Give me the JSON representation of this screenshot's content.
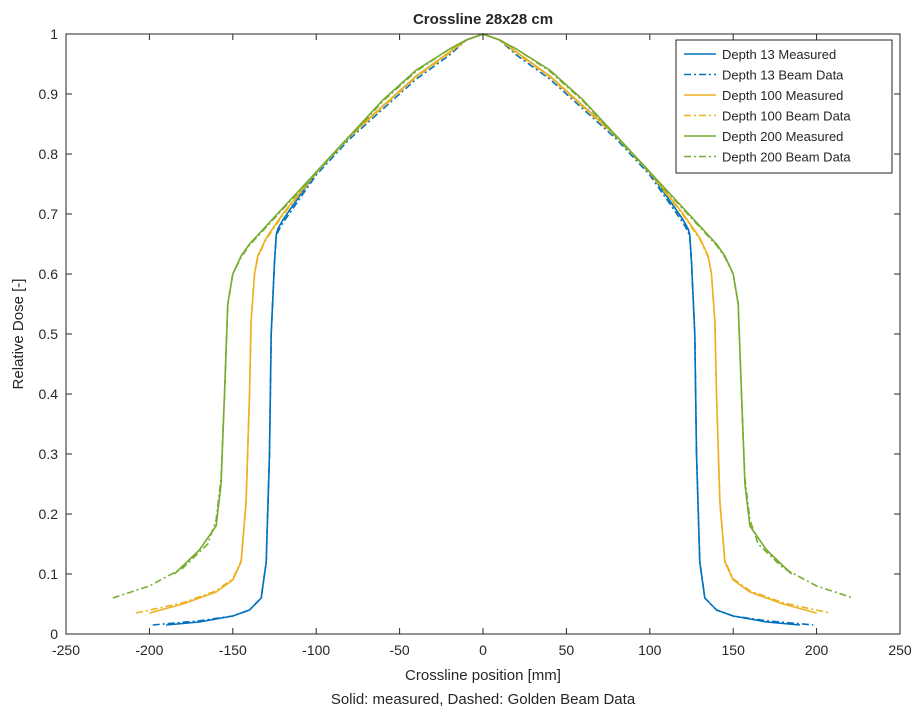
{
  "chart_data": {
    "type": "line",
    "title": "Crossline 28x28 cm",
    "xlabel": "Crossline position [mm]",
    "ylabel": "Relative Dose [-]",
    "caption": "Solid: measured, Dashed: Golden Beam Data",
    "xlim": [
      -250,
      250
    ],
    "ylim": [
      0,
      1
    ],
    "xticks": [
      -250,
      -200,
      -150,
      -100,
      -50,
      0,
      50,
      100,
      150,
      200,
      250
    ],
    "yticks": [
      0,
      0.1,
      0.2,
      0.3,
      0.4,
      0.5,
      0.6,
      0.7,
      0.8,
      0.9,
      1
    ],
    "grid": false,
    "legend": "top-right",
    "colors": {
      "blue": "#0072BD",
      "orange": "#EDB120",
      "green": "#77AC30"
    },
    "series": [
      {
        "name": "Depth 13 Measured",
        "color": "#0072BD",
        "style": "solid",
        "x": [
          -190,
          -170,
          -150,
          -140,
          -133,
          -130,
          -128,
          -127,
          -125,
          -124,
          -123,
          -120,
          -110,
          -100,
          -80,
          -60,
          -40,
          -20,
          -10,
          0,
          10,
          20,
          40,
          60,
          80,
          100,
          110,
          120,
          123,
          124,
          125,
          127,
          128,
          130,
          133,
          140,
          150,
          170,
          190
        ],
        "y": [
          0.015,
          0.02,
          0.03,
          0.04,
          0.06,
          0.12,
          0.3,
          0.5,
          0.62,
          0.665,
          0.675,
          0.69,
          0.73,
          0.77,
          0.83,
          0.88,
          0.93,
          0.97,
          0.99,
          1.0,
          0.99,
          0.97,
          0.93,
          0.88,
          0.83,
          0.77,
          0.73,
          0.69,
          0.675,
          0.665,
          0.62,
          0.5,
          0.3,
          0.12,
          0.06,
          0.04,
          0.03,
          0.02,
          0.015
        ]
      },
      {
        "name": "Depth 13 Beam Data",
        "color": "#0072BD",
        "style": "dashdot",
        "x": [
          -198,
          -170,
          -150,
          -140,
          -133,
          -130,
          -128,
          -127,
          -125,
          -124,
          -123,
          -120,
          -110,
          -100,
          -80,
          -60,
          -40,
          -20,
          -10,
          0,
          10,
          20,
          40,
          60,
          80,
          100,
          110,
          120,
          123,
          124,
          125,
          127,
          128,
          130,
          133,
          140,
          150,
          170,
          198
        ],
        "y": [
          0.015,
          0.022,
          0.03,
          0.04,
          0.06,
          0.12,
          0.3,
          0.5,
          0.62,
          0.66,
          0.67,
          0.685,
          0.725,
          0.765,
          0.825,
          0.875,
          0.925,
          0.965,
          0.99,
          1.0,
          0.99,
          0.965,
          0.925,
          0.875,
          0.825,
          0.765,
          0.725,
          0.685,
          0.67,
          0.66,
          0.62,
          0.5,
          0.3,
          0.12,
          0.06,
          0.04,
          0.03,
          0.022,
          0.015
        ]
      },
      {
        "name": "Depth 100 Measured",
        "color": "#EDB120",
        "style": "solid",
        "x": [
          -200,
          -180,
          -160,
          -150,
          -145,
          -142,
          -140,
          -139,
          -137,
          -135,
          -130,
          -120,
          -100,
          -80,
          -60,
          -40,
          -20,
          -10,
          0,
          10,
          20,
          40,
          60,
          80,
          100,
          120,
          130,
          135,
          137,
          139,
          140,
          142,
          145,
          150,
          160,
          180,
          200
        ],
        "y": [
          0.035,
          0.05,
          0.07,
          0.09,
          0.12,
          0.22,
          0.4,
          0.52,
          0.6,
          0.63,
          0.66,
          0.7,
          0.77,
          0.83,
          0.88,
          0.93,
          0.97,
          0.99,
          1.0,
          0.99,
          0.97,
          0.93,
          0.88,
          0.83,
          0.77,
          0.7,
          0.66,
          0.63,
          0.6,
          0.52,
          0.4,
          0.22,
          0.12,
          0.09,
          0.07,
          0.05,
          0.035
        ]
      },
      {
        "name": "Depth 100 Beam Data",
        "color": "#EDB120",
        "style": "dashdot",
        "x": [
          -208,
          -180,
          -160,
          -150,
          -145,
          -142,
          -140,
          -139,
          -137,
          -135,
          -130,
          -120,
          -100,
          -80,
          -60,
          -40,
          -20,
          -10,
          0,
          10,
          20,
          40,
          60,
          80,
          100,
          120,
          130,
          135,
          137,
          139,
          140,
          142,
          145,
          150,
          160,
          180,
          208
        ],
        "y": [
          0.035,
          0.052,
          0.072,
          0.092,
          0.122,
          0.22,
          0.4,
          0.52,
          0.6,
          0.628,
          0.658,
          0.698,
          0.768,
          0.828,
          0.878,
          0.928,
          0.968,
          0.99,
          1.0,
          0.99,
          0.968,
          0.928,
          0.878,
          0.828,
          0.768,
          0.698,
          0.658,
          0.628,
          0.6,
          0.52,
          0.4,
          0.22,
          0.122,
          0.092,
          0.072,
          0.052,
          0.035
        ]
      },
      {
        "name": "Depth 200 Measured",
        "color": "#77AC30",
        "style": "solid",
        "x": [
          -185,
          -170,
          -160,
          -157,
          -155,
          -153,
          -150,
          -145,
          -140,
          -120,
          -100,
          -80,
          -60,
          -40,
          -20,
          -10,
          0,
          10,
          20,
          40,
          60,
          80,
          100,
          120,
          140,
          145,
          150,
          153,
          155,
          157,
          160,
          170,
          185
        ],
        "y": [
          0.1,
          0.14,
          0.18,
          0.25,
          0.4,
          0.55,
          0.6,
          0.63,
          0.65,
          0.71,
          0.77,
          0.83,
          0.89,
          0.94,
          0.975,
          0.99,
          1.0,
          0.99,
          0.975,
          0.94,
          0.89,
          0.83,
          0.77,
          0.71,
          0.65,
          0.63,
          0.6,
          0.55,
          0.4,
          0.25,
          0.18,
          0.14,
          0.1
        ]
      },
      {
        "name": "Depth 200 Beam Data",
        "color": "#77AC30",
        "style": "dashdot",
        "x": [
          -222,
          -200,
          -180,
          -165,
          -160,
          -157,
          -155,
          -153,
          -150,
          -145,
          -140,
          -120,
          -100,
          -80,
          -60,
          -40,
          -20,
          -10,
          0,
          10,
          20,
          40,
          60,
          80,
          100,
          120,
          140,
          145,
          150,
          153,
          155,
          157,
          160,
          165,
          180,
          200,
          222
        ],
        "y": [
          0.06,
          0.08,
          0.11,
          0.15,
          0.19,
          0.26,
          0.4,
          0.55,
          0.6,
          0.628,
          0.648,
          0.708,
          0.768,
          0.828,
          0.888,
          0.938,
          0.975,
          0.99,
          1.0,
          0.99,
          0.975,
          0.938,
          0.888,
          0.828,
          0.768,
          0.708,
          0.648,
          0.628,
          0.6,
          0.55,
          0.4,
          0.26,
          0.19,
          0.15,
          0.11,
          0.08,
          0.06
        ]
      }
    ]
  }
}
